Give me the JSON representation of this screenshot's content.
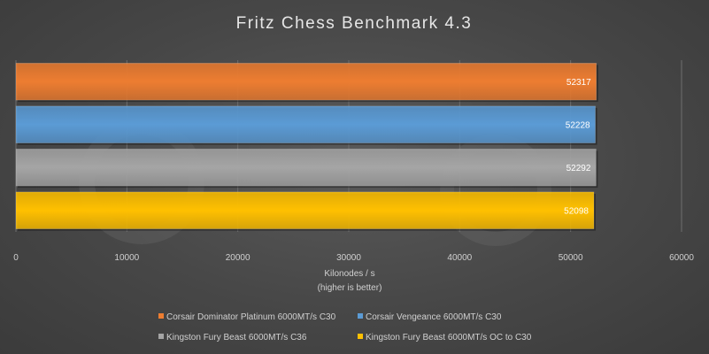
{
  "chart_data": {
    "type": "bar",
    "orientation": "horizontal",
    "title": "Fritz Chess Benchmark 4.3",
    "xlabel": "Kilonodes / s",
    "xlabel_sub": "(higher is better)",
    "xlim": [
      0,
      60000
    ],
    "xticks": [
      0,
      10000,
      20000,
      30000,
      40000,
      50000,
      60000
    ],
    "tick_labels": [
      "0",
      "10000",
      "20000",
      "30000",
      "40000",
      "50000",
      "60000"
    ],
    "grid": true,
    "legend_position": "bottom",
    "series": [
      {
        "name": "Corsair Dominator Platinum 6000MT/s C30",
        "value": 52317,
        "label": "52317",
        "color": "#ED7D31"
      },
      {
        "name": "Corsair Vengeance 6000MT/s C30",
        "value": 52228,
        "label": "52228",
        "color": "#5B9BD5"
      },
      {
        "name": "Kingston Fury Beast 6000MT/s C36",
        "value": 52292,
        "label": "52292",
        "color": "#A5A5A5"
      },
      {
        "name": "Kingston Fury Beast 6000MT/s OC to C30",
        "value": 52098,
        "label": "52098",
        "color": "#FFC000"
      }
    ]
  }
}
